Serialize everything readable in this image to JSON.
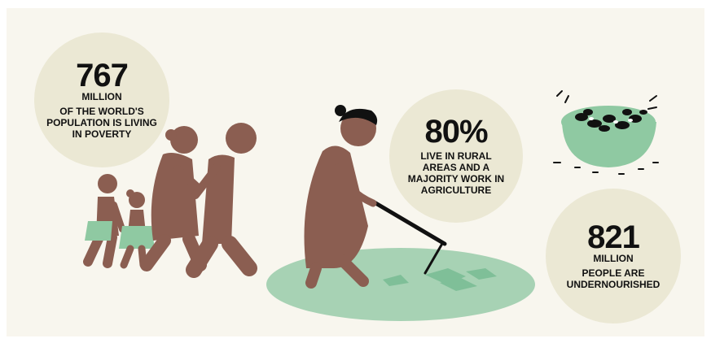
{
  "stats": {
    "poverty": {
      "value": "767",
      "unit": "MILLION",
      "description": "OF THE WORLD'S POPULATION IS LIVING IN POVERTY"
    },
    "rural": {
      "value": "80%",
      "description": "LIVE IN RURAL AREAS AND A MAJORITY WORK IN AGRICULTURE"
    },
    "undernourished": {
      "value": "821",
      "unit": "MILLION",
      "description": "PEOPLE ARE UNDERNOURISHED"
    }
  },
  "colors": {
    "background": "#f8f6ee",
    "circle": "#ebe8d4",
    "skin": "#8b5e51",
    "green": "#8fc9a2",
    "field": "#a7d2b4",
    "black": "#111111"
  },
  "icons": [
    "walking-family-illustration",
    "farmer-hoeing-illustration",
    "bowl-of-beans-icon"
  ]
}
